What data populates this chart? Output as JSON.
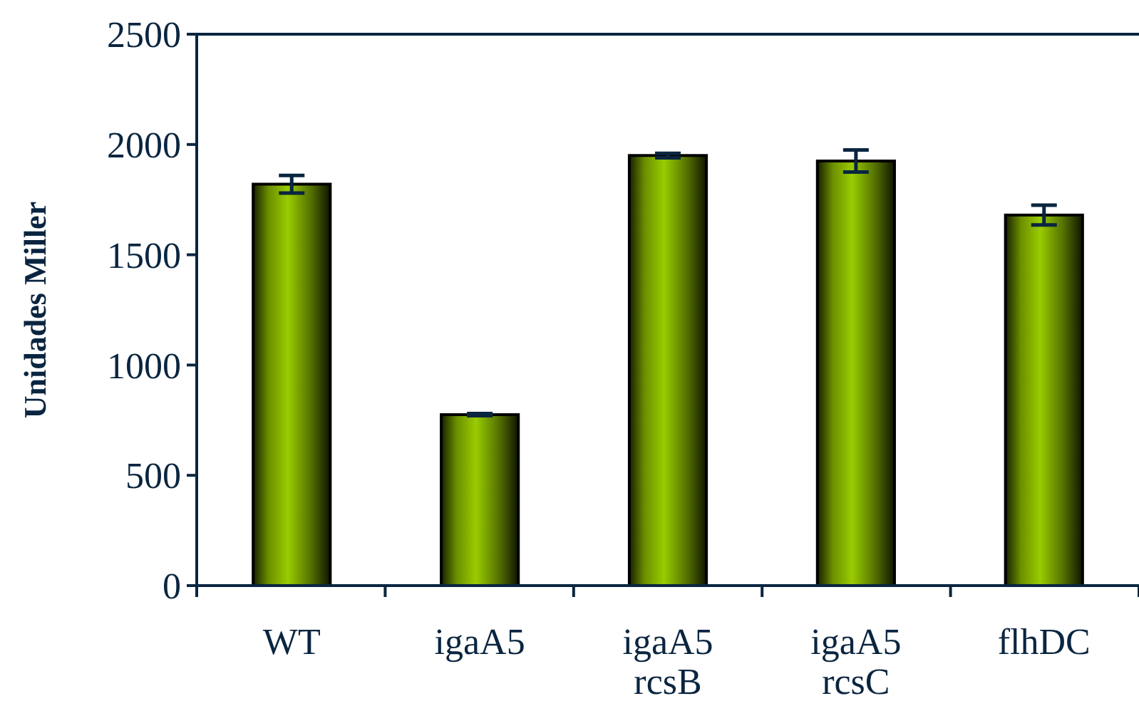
{
  "chart_data": {
    "type": "bar",
    "ylabel": "Unidades Miller",
    "categories": [
      "WT",
      "igaA5",
      "igaA5 rcsB",
      "igaA5 rcsC",
      "flhDC"
    ],
    "values": [
      1820,
      775,
      1950,
      1925,
      1680
    ],
    "errors": [
      40,
      5,
      10,
      50,
      45
    ],
    "color": "#99cc00",
    "ylim": [
      0,
      2500
    ],
    "yticks": [
      0,
      500,
      1000,
      1500,
      2000,
      2500
    ],
    "grid": false
  }
}
